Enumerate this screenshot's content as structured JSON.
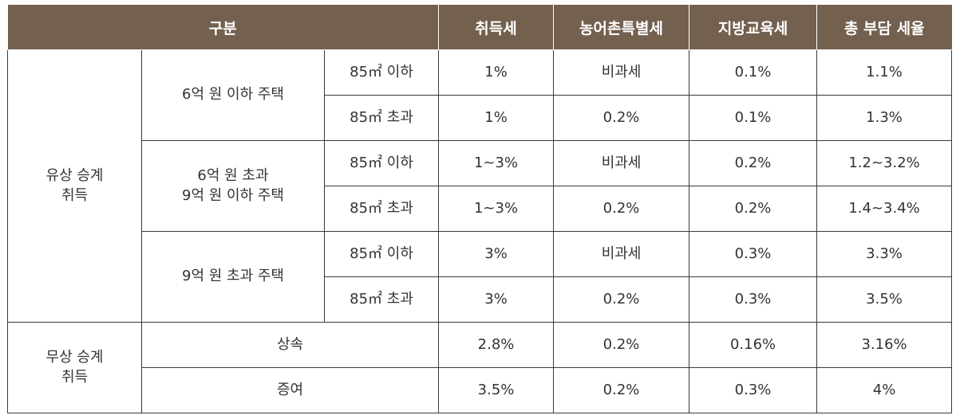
{
  "header": {
    "category": "구분",
    "acquisition_tax": "취득세",
    "rural_special_tax": "농어촌특별세",
    "local_education_tax": "지방교육세",
    "total_rate": "총 부담 세율"
  },
  "paid": {
    "label_line1": "유상 승계",
    "label_line2": "취득",
    "groups": [
      {
        "label_line1": "6억 원 이하 주택",
        "label_line2": "",
        "rows": [
          {
            "size": "85㎡ 이하",
            "acq": "1%",
            "rural": "비과세",
            "edu": "0.1%",
            "total": "1.1%"
          },
          {
            "size": "85㎡ 초과",
            "acq": "1%",
            "rural": "0.2%",
            "edu": "0.1%",
            "total": "1.3%"
          }
        ]
      },
      {
        "label_line1": "6억 원 초과",
        "label_line2": "9억 원 이하 주택",
        "rows": [
          {
            "size": "85㎡ 이하",
            "acq": "1~3%",
            "rural": "비과세",
            "edu": "0.2%",
            "total": "1.2~3.2%"
          },
          {
            "size": "85㎡ 초과",
            "acq": "1~3%",
            "rural": "0.2%",
            "edu": "0.2%",
            "total": "1.4~3.4%"
          }
        ]
      },
      {
        "label_line1": "9억 원 초과 주택",
        "label_line2": "",
        "rows": [
          {
            "size": "85㎡ 이하",
            "acq": "3%",
            "rural": "비과세",
            "edu": "0.3%",
            "total": "3.3%"
          },
          {
            "size": "85㎡ 초과",
            "acq": "3%",
            "rural": "0.2%",
            "edu": "0.3%",
            "total": "3.5%"
          }
        ]
      }
    ]
  },
  "free": {
    "label_line1": "무상 승계",
    "label_line2": "취득",
    "rows": [
      {
        "type": "상속",
        "acq": "2.8%",
        "rural": "0.2%",
        "edu": "0.16%",
        "total": "3.16%"
      },
      {
        "type": "증여",
        "acq": "3.5%",
        "rural": "0.2%",
        "edu": "0.3%",
        "total": "4%"
      }
    ]
  },
  "colors": {
    "header_bg": "#73604f",
    "header_text": "#ffffff",
    "border": "#3a3a3a",
    "body_text": "#333333"
  }
}
